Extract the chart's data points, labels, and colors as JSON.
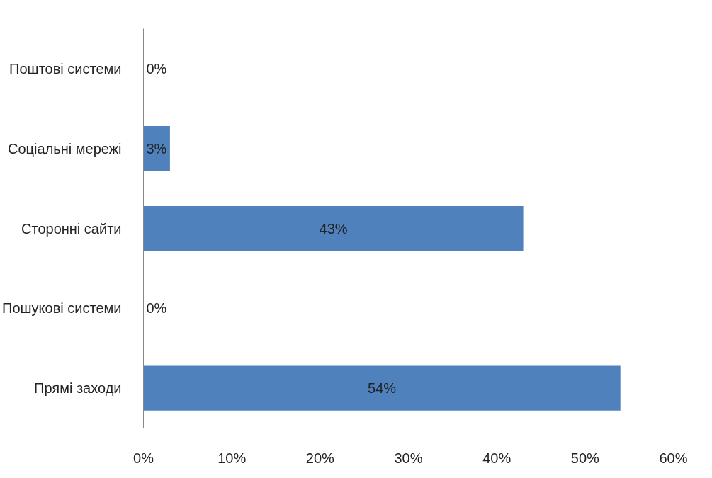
{
  "chart_data": {
    "type": "bar",
    "orientation": "horizontal",
    "categories": [
      "Поштові системи",
      "Соціальні мережі",
      "Сторонні сайти",
      "Пошукові системи",
      "Прямі заходи"
    ],
    "values": [
      0,
      3,
      43,
      0,
      54
    ],
    "color": "#4f81bd",
    "value_labels": [
      "0%",
      "3%",
      "43%",
      "0%",
      "54%"
    ],
    "xlim": [
      0,
      60
    ],
    "xticks": [
      {
        "value": 0,
        "label": "0%"
      },
      {
        "value": 10,
        "label": "10%"
      },
      {
        "value": 20,
        "label": "20%"
      },
      {
        "value": 30,
        "label": "30%"
      },
      {
        "value": 40,
        "label": "40%"
      },
      {
        "value": 50,
        "label": "50%"
      },
      {
        "value": 60,
        "label": "60%"
      }
    ],
    "grid": false
  }
}
